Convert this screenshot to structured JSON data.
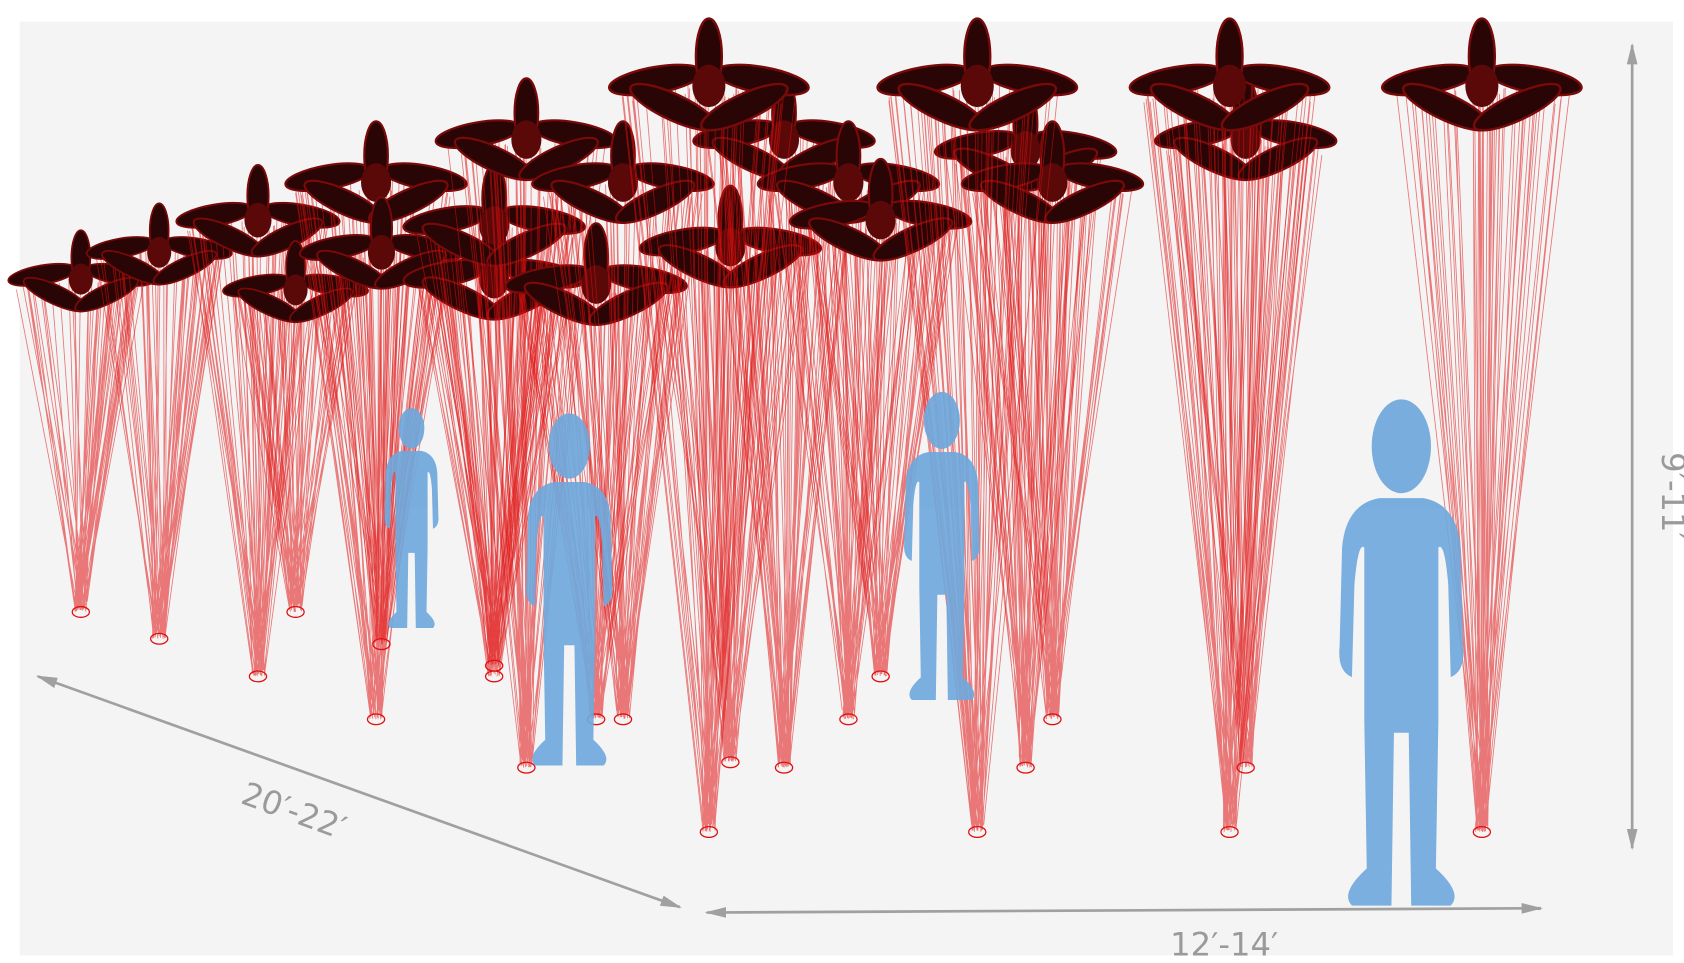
{
  "dimensions": {
    "depth": "20′-22′",
    "width": "12′-14′",
    "height": "9′-11′"
  }
}
